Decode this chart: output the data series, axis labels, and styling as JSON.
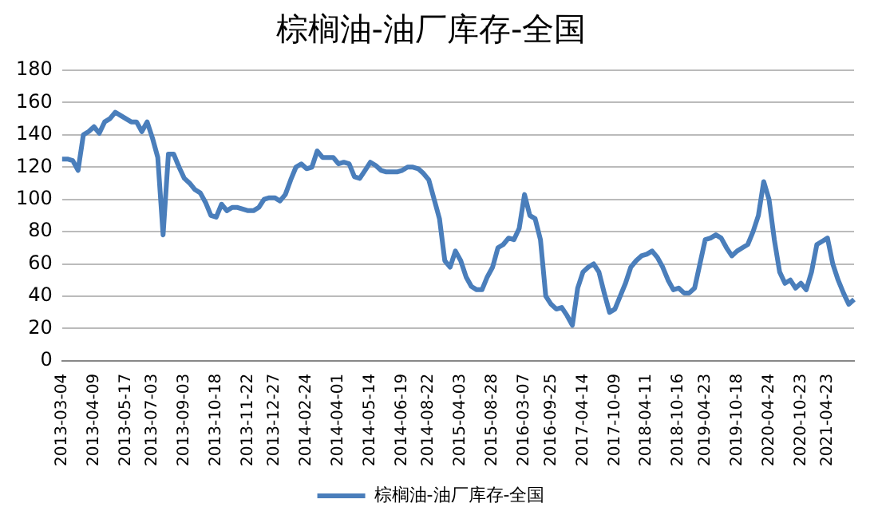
{
  "chart_data": {
    "type": "line",
    "title": "棕榈油-油厂库存-全国",
    "categories": [
      "2013-03-04",
      null,
      null,
      null,
      null,
      null,
      "2013-04-09",
      null,
      null,
      null,
      null,
      null,
      "2013-05-17",
      null,
      null,
      null,
      null,
      "2013-07-03",
      null,
      null,
      null,
      null,
      null,
      "2013-09-03",
      null,
      null,
      null,
      null,
      null,
      "2013-10-18",
      null,
      null,
      null,
      null,
      null,
      "2013-11-22",
      null,
      null,
      null,
      null,
      "2013-12-27",
      null,
      null,
      null,
      null,
      null,
      "2014-02-24",
      null,
      null,
      null,
      null,
      null,
      "2014-04-01",
      null,
      null,
      null,
      null,
      null,
      "2014-05-14",
      null,
      null,
      null,
      null,
      null,
      "2014-06-19",
      null,
      null,
      null,
      null,
      "2014-08-22",
      null,
      null,
      null,
      null,
      null,
      "2015-04-03",
      null,
      null,
      null,
      null,
      null,
      "2015-08-28",
      null,
      null,
      null,
      null,
      null,
      "2016-03-07",
      null,
      null,
      null,
      null,
      "2016-09-25",
      null,
      null,
      null,
      null,
      null,
      "2017-04-14",
      null,
      null,
      null,
      null,
      null,
      "2017-10-09",
      null,
      null,
      null,
      null,
      null,
      "2018-04-11",
      null,
      null,
      null,
      null,
      null,
      "2018-10-16",
      null,
      null,
      null,
      null,
      "2019-04-23",
      null,
      null,
      null,
      null,
      null,
      "2019-10-18",
      null,
      null,
      null,
      null,
      null,
      "2020-04-24",
      null,
      null,
      null,
      null,
      null,
      "2020-10-23",
      null,
      null,
      null,
      null,
      "2021-04-23",
      null,
      null,
      null,
      null,
      null
    ],
    "series": [
      {
        "name": "棕榈油-油厂库存-全国",
        "color": "#4a7ebb",
        "values": [
          125,
          125,
          124,
          118,
          140,
          142,
          145,
          141,
          148,
          150,
          154,
          152,
          150,
          148,
          148,
          142,
          148,
          138,
          126,
          78,
          128,
          128,
          120,
          113,
          110,
          106,
          104,
          98,
          90,
          89,
          97,
          93,
          95,
          95,
          94,
          93,
          93,
          95,
          100,
          101,
          101,
          99,
          103,
          112,
          120,
          122,
          119,
          120,
          130,
          126,
          126,
          126,
          122,
          123,
          122,
          114,
          113,
          118,
          123,
          121,
          118,
          117,
          117,
          117,
          118,
          120,
          120,
          119,
          116,
          112,
          100,
          88,
          62,
          58,
          68,
          62,
          52,
          46,
          44,
          44,
          52,
          58,
          70,
          72,
          76,
          75,
          82,
          103,
          90,
          88,
          75,
          40,
          35,
          32,
          33,
          28,
          22,
          45,
          55,
          58,
          60,
          55,
          42,
          30,
          32,
          40,
          48,
          58,
          62,
          65,
          66,
          68,
          64,
          58,
          50,
          44,
          45,
          42,
          42,
          45,
          60,
          75,
          76,
          78,
          76,
          70,
          65,
          68,
          70,
          72,
          80,
          90,
          111,
          100,
          75,
          55,
          48,
          50,
          45,
          48,
          44,
          55,
          72,
          74,
          76,
          60,
          50,
          42,
          35,
          38
        ]
      }
    ],
    "ylim": [
      0,
      180
    ],
    "yticks": [
      0,
      20,
      40,
      60,
      80,
      100,
      120,
      140,
      160,
      180
    ],
    "grid": "y",
    "legend": "bottom",
    "marker": "none",
    "line_style": "solid"
  }
}
